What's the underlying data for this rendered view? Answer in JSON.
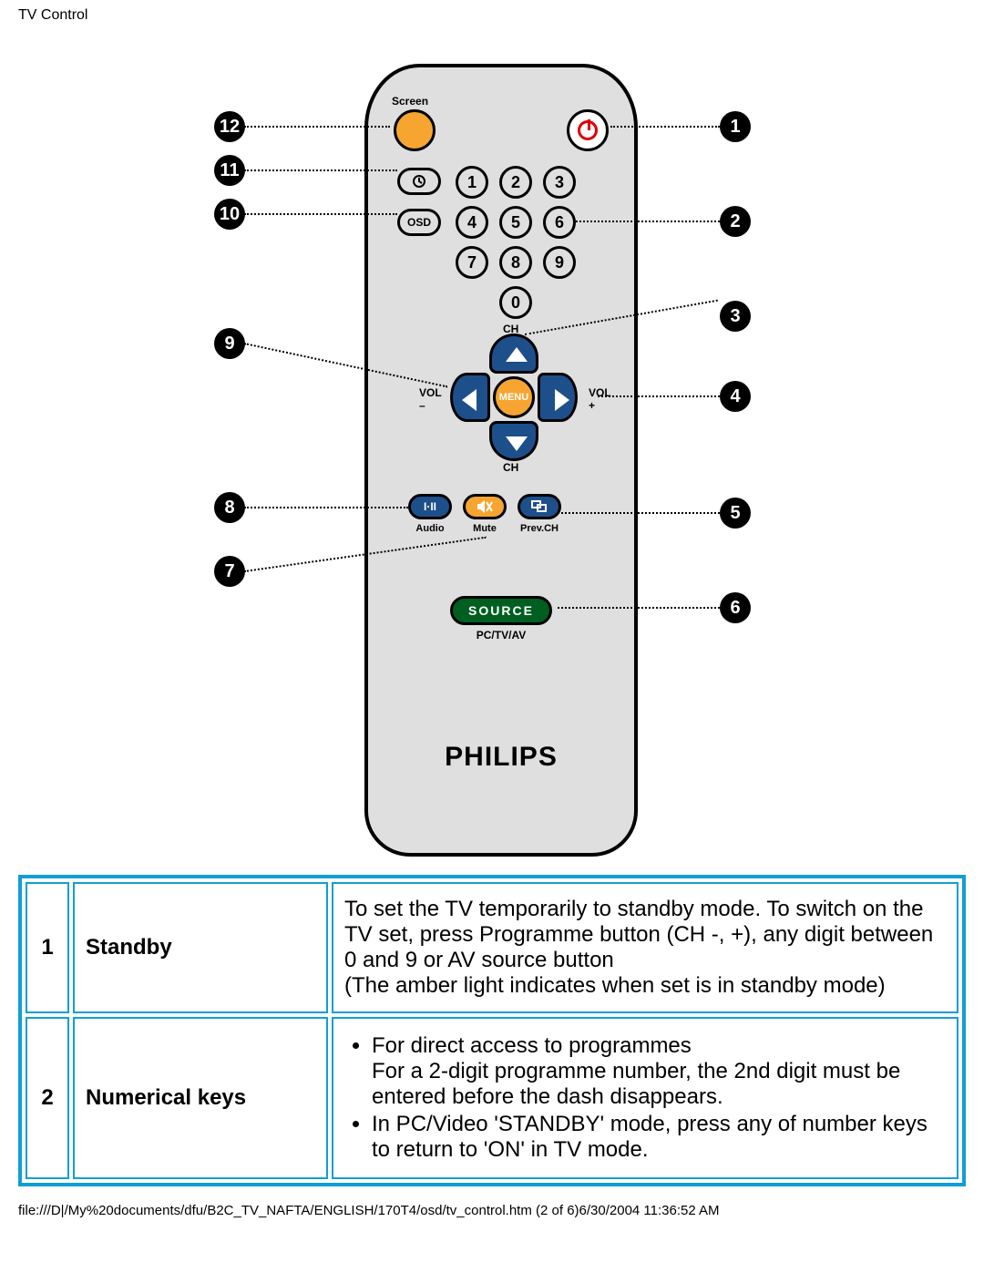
{
  "header": {
    "title": "TV Control"
  },
  "remote": {
    "screen_label": "Screen",
    "osd_label": "OSD",
    "numbers": [
      "1",
      "2",
      "3",
      "4",
      "5",
      "6",
      "7",
      "8",
      "9",
      "0"
    ],
    "nav": {
      "ch": "CH",
      "vol_minus": "VOL\n–",
      "vol_plus": "VOL\n+",
      "menu": "MENU"
    },
    "funcs": {
      "audio": {
        "icon": "I·II",
        "label": "Audio"
      },
      "mute": {
        "label": "Mute"
      },
      "prevch": {
        "label": "Prev.CH"
      }
    },
    "source": {
      "button": "SOURCE",
      "label": "PC/TV/AV"
    },
    "brand": "PHILIPS"
  },
  "callouts": {
    "right": [
      "1",
      "2",
      "3",
      "4",
      "5",
      "6"
    ],
    "left": [
      "12",
      "11",
      "10",
      "9",
      "8",
      "7"
    ]
  },
  "table": {
    "rows": [
      {
        "num": "1",
        "name": "Standby",
        "desc_html": "To set the TV temporarily to standby mode. To switch on the TV set, press Programme button (CH -, +), any digit between 0 and 9 or AV source button<br>(The amber light indicates when set is in standby mode)"
      },
      {
        "num": "2",
        "name": "Numerical keys",
        "desc_html": "<ul><li>For direct access to programmes<br>For a 2-digit programme number, the 2nd digit must be entered before the dash disappears.</li><li>In PC/Video 'STANDBY' mode, press any of number keys to return to 'ON' in TV mode.</li></ul>"
      }
    ]
  },
  "footer": {
    "text": "file:///D|/My%20documents/dfu/B2C_TV_NAFTA/ENGLISH/170T4/osd/tv_control.htm (2 of 6)6/30/2004 11:36:52 AM"
  },
  "colors": {
    "remote_body": "#dedfde",
    "orange": "#f7a531",
    "blue": "#1d4f8b",
    "green": "#005e20",
    "red": "#de0000",
    "table_border": "#119ed5"
  }
}
